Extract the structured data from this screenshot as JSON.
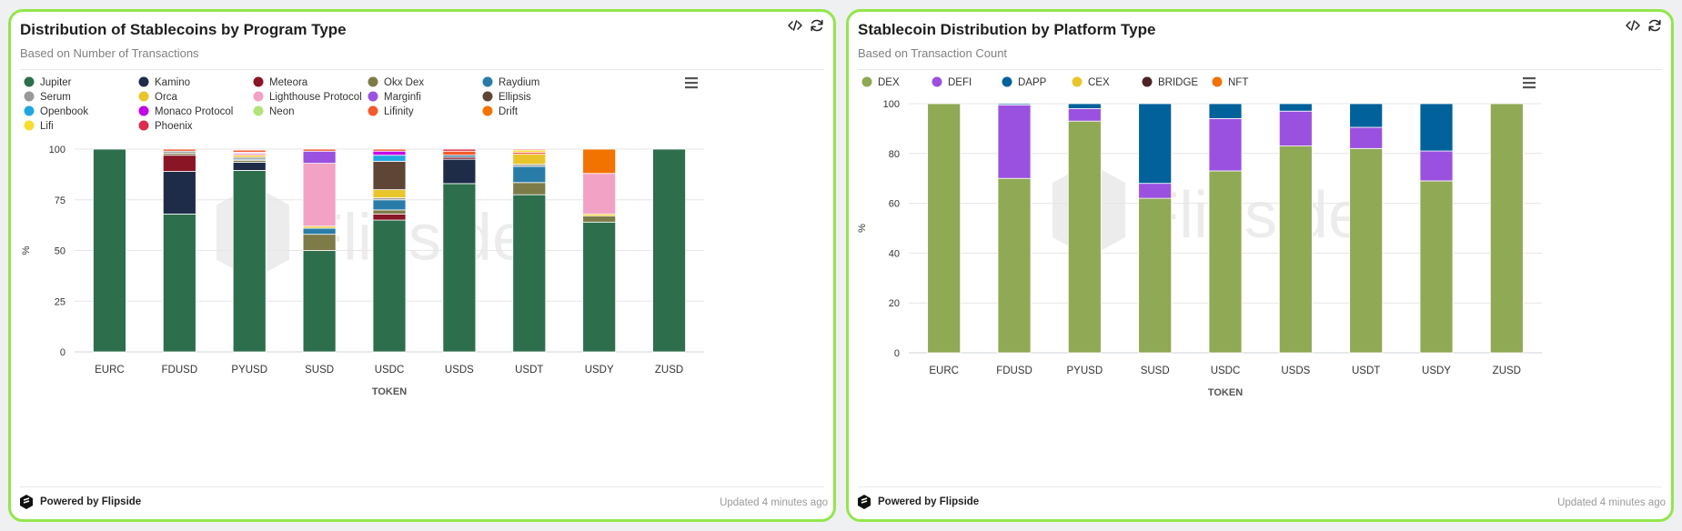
{
  "left": {
    "title": "Distribution of Stablecoins by Program Type",
    "subtitle": "Based on Number of Transactions",
    "footer_brand": "Powered by Flipside",
    "updated": "Updated 4 minutes ago",
    "watermark": "Flipside"
  },
  "right": {
    "title": "Stablecoin Distribution by Platform Type",
    "subtitle": "Based on Transaction Count",
    "footer_brand": "Powered by Flipside",
    "updated": "Updated 4 minutes ago",
    "watermark": "Flipside"
  },
  "chart_data": [
    {
      "type": "bar",
      "stacked": true,
      "title": "Distribution of Stablecoins by Program Type",
      "xlabel": "TOKEN",
      "ylabel": "%",
      "ylim": [
        0,
        100
      ],
      "yticks": [
        0,
        25,
        50,
        75,
        100
      ],
      "legend_position": "top",
      "categories": [
        "EURC",
        "FDUSD",
        "PYUSD",
        "SUSD",
        "USDC",
        "USDS",
        "USDT",
        "USDY",
        "ZUSD"
      ],
      "series": [
        {
          "name": "Jupiter",
          "color": "#2d6e4c",
          "values": [
            100,
            68,
            89.5,
            50,
            65,
            83,
            77.5,
            64,
            100
          ]
        },
        {
          "name": "Kamino",
          "color": "#1e2c48",
          "values": [
            0,
            21,
            4,
            0,
            0,
            12,
            0,
            0,
            0
          ]
        },
        {
          "name": "Meteora",
          "color": "#8a1524",
          "values": [
            0,
            8,
            0,
            0,
            3,
            1,
            0,
            0,
            0
          ]
        },
        {
          "name": "Okx Dex",
          "color": "#7d7b48",
          "values": [
            0,
            1,
            1,
            8,
            2,
            0,
            6,
            3,
            0
          ]
        },
        {
          "name": "Raydium",
          "color": "#2a7ca8",
          "values": [
            0,
            0,
            0.5,
            3,
            5,
            1,
            8,
            0,
            0
          ]
        },
        {
          "name": "Serum",
          "color": "#999999",
          "values": [
            0,
            1,
            1,
            0,
            1,
            0,
            1,
            0,
            0
          ]
        },
        {
          "name": "Orca",
          "color": "#e8c62b",
          "values": [
            0,
            0,
            1,
            1,
            4,
            0,
            5,
            1,
            0
          ]
        },
        {
          "name": "Lighthouse Protocol",
          "color": "#f2a2c4",
          "values": [
            0,
            0,
            1,
            31,
            0,
            0,
            0,
            20,
            0
          ]
        },
        {
          "name": "Marginfi",
          "color": "#9b51e0",
          "values": [
            0,
            0,
            0.5,
            6,
            0,
            0,
            0,
            0,
            0
          ]
        },
        {
          "name": "Ellipsis",
          "color": "#5e4536",
          "values": [
            0,
            0,
            0,
            0,
            14,
            0,
            0,
            0,
            0
          ]
        },
        {
          "name": "Openbook",
          "color": "#1fa8e0",
          "values": [
            0,
            0,
            0,
            0,
            3,
            0,
            0,
            0,
            0
          ]
        },
        {
          "name": "Monaco Protocol",
          "color": "#c200e8",
          "values": [
            0,
            0,
            0,
            0,
            2,
            0,
            0,
            0,
            0
          ]
        },
        {
          "name": "Neon",
          "color": "#b3e37a",
          "values": [
            0,
            0,
            0,
            0,
            0,
            0,
            0,
            0,
            0
          ]
        },
        {
          "name": "Lifinity",
          "color": "#f35a2b",
          "values": [
            0,
            1,
            1,
            1,
            1,
            2,
            1,
            0,
            0
          ]
        },
        {
          "name": "Drift",
          "color": "#f27300",
          "values": [
            0,
            0,
            0,
            0,
            0,
            0,
            0,
            12,
            0
          ]
        },
        {
          "name": "Lifi",
          "color": "#f7dd2e",
          "values": [
            0,
            0,
            0,
            0,
            0,
            0,
            1,
            0,
            0
          ]
        },
        {
          "name": "Phoenix",
          "color": "#dd2a4e",
          "values": [
            0,
            0,
            0,
            0,
            0,
            1,
            0.5,
            0,
            0
          ]
        }
      ]
    },
    {
      "type": "bar",
      "stacked": true,
      "title": "Stablecoin Distribution by Platform Type",
      "xlabel": "TOKEN",
      "ylabel": "%",
      "ylim": [
        0,
        100
      ],
      "yticks": [
        0,
        20,
        40,
        60,
        80,
        100
      ],
      "legend_position": "top",
      "categories": [
        "EURC",
        "FDUSD",
        "PYUSD",
        "SUSD",
        "USDC",
        "USDS",
        "USDT",
        "USDY",
        "ZUSD"
      ],
      "series": [
        {
          "name": "DEX",
          "color": "#8fa954",
          "values": [
            100,
            70,
            93,
            62,
            73,
            83,
            82,
            69,
            100
          ]
        },
        {
          "name": "DEFI",
          "color": "#9b51e0",
          "values": [
            0,
            29.5,
            5,
            6,
            21,
            14,
            8.5,
            12,
            0
          ]
        },
        {
          "name": "DAPP",
          "color": "#00619b",
          "values": [
            0,
            0.5,
            2,
            32,
            6,
            3,
            9.5,
            19,
            0
          ]
        },
        {
          "name": "CEX",
          "color": "#e8c62b",
          "values": [
            0,
            0,
            0,
            0,
            0,
            0,
            0,
            0,
            0
          ]
        },
        {
          "name": "BRIDGE",
          "color": "#4a2524",
          "values": [
            0,
            0,
            0,
            0,
            0,
            0,
            0,
            0,
            0
          ]
        },
        {
          "name": "NFT",
          "color": "#f27300",
          "values": [
            0,
            0,
            0,
            0,
            0,
            0,
            0,
            0,
            0
          ]
        }
      ]
    }
  ]
}
